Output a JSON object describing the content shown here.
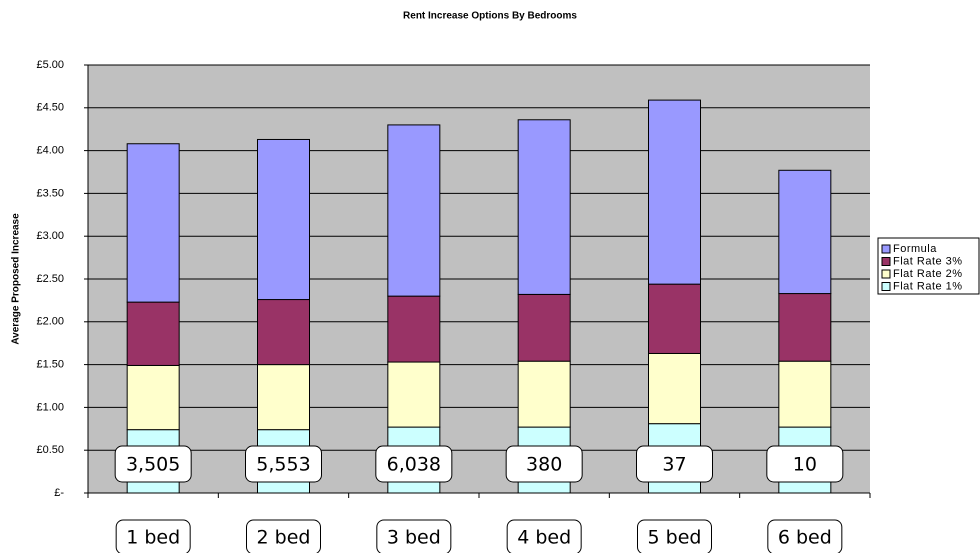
{
  "chart_data": {
    "type": "stacked_bar",
    "title": "Rent Increase Options By Bedrooms",
    "y_label": "Average Proposed Increase",
    "categories": [
      "1 bed",
      "2 bed",
      "3 bed",
      "4 bed",
      "5 bed",
      "6 bed"
    ],
    "annotations": [
      "3,505",
      "5,553",
      "6,038",
      "380",
      "37",
      "10"
    ],
    "series": [
      {
        "name": "Flat Rate 1%",
        "color": "#ccffff",
        "values": [
          0.74,
          0.74,
          0.77,
          0.77,
          0.81,
          0.77
        ]
      },
      {
        "name": "Flat Rate 2%",
        "color": "#ffffcc",
        "values": [
          0.75,
          0.76,
          0.76,
          0.77,
          0.82,
          0.77
        ]
      },
      {
        "name": "Flat Rate 3%",
        "color": "#993366",
        "values": [
          0.74,
          0.76,
          0.77,
          0.78,
          0.81,
          0.79
        ]
      },
      {
        "name": "Formula",
        "color": "#9999ff",
        "values": [
          1.85,
          1.87,
          2.0,
          2.04,
          2.15,
          1.44
        ]
      }
    ],
    "ylim": [
      0,
      5
    ],
    "yticks": [
      {
        "value": 0,
        "label": "£-"
      },
      {
        "value": 0.5,
        "label": "£0.50"
      },
      {
        "value": 1,
        "label": "£1.00"
      },
      {
        "value": 1.5,
        "label": "£1.50"
      },
      {
        "value": 2,
        "label": "£2.00"
      },
      {
        "value": 2.5,
        "label": "£2.50"
      },
      {
        "value": 3,
        "label": "£3.00"
      },
      {
        "value": 3.5,
        "label": "£3.50"
      },
      {
        "value": 4,
        "label": "£4.00"
      },
      {
        "value": 4.5,
        "label": "£4.50"
      },
      {
        "value": 5,
        "label": "£5.00"
      }
    ],
    "grid": true,
    "legend": "right",
    "background": "#c0c0c0"
  }
}
